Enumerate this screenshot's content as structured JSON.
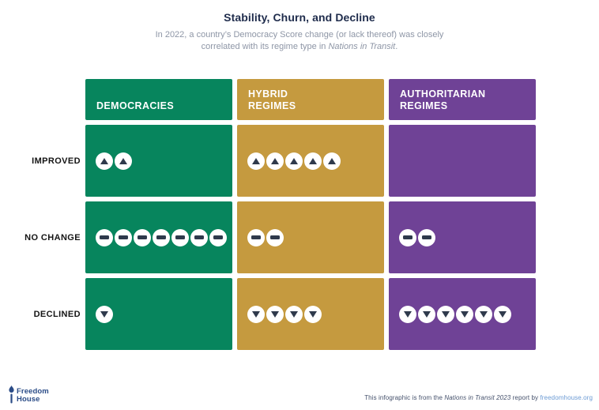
{
  "header": {
    "title": "Stability, Churn, and Decline",
    "subtitle_line1": "In 2022, a country’s Democracy Score change (or lack thereof) was closely",
    "subtitle_line2_prefix": "correlated with its regime type in ",
    "subtitle_line2_italic": "Nations in Transit",
    "subtitle_line2_suffix": "."
  },
  "grid": {
    "columns": [
      {
        "id": "democracies",
        "label": "DEMOCRACIES"
      },
      {
        "id": "hybrid",
        "label": "HYBRID\nREGIMES"
      },
      {
        "id": "authoritarian",
        "label": "AUTHORITARIAN\nREGIMES"
      }
    ],
    "rows": [
      {
        "label": "IMPROVED",
        "icon": "up-arrow",
        "counts": [
          2,
          5,
          0
        ]
      },
      {
        "label": "NO CHANGE",
        "icon": "minus",
        "counts": [
          7,
          2,
          2
        ]
      },
      {
        "label": "DECLINED",
        "icon": "down-arrow",
        "counts": [
          1,
          4,
          6
        ]
      }
    ]
  },
  "chart_data": {
    "type": "table",
    "title": "Stability, Churn, and Decline",
    "subtitle": "In 2022, a country’s Democracy Score change (or lack thereof) was closely correlated with its regime type in Nations in Transit.",
    "columns": [
      "Democracies",
      "Hybrid Regimes",
      "Authoritarian Regimes"
    ],
    "rows": [
      "Improved",
      "No Change",
      "Declined"
    ],
    "values": [
      [
        2,
        5,
        0
      ],
      [
        7,
        2,
        2
      ],
      [
        1,
        4,
        6
      ]
    ],
    "unit": "countries",
    "legend_position": "none",
    "notes": "Pictogram matrix: each circle icon = one country; up arrow = improved, minus = no change, down arrow = declined."
  },
  "footer": {
    "logo_line1": "Freedom",
    "logo_line2": "House",
    "attribution_prefix": "This infographic is from the ",
    "attribution_italic": "Nations in Transit 2023",
    "attribution_mid": " report by ",
    "attribution_link": "freedomhouse.org"
  },
  "colors": {
    "democracies": "#07855D",
    "hybrid": "#C59A3F",
    "authoritarian": "#6F4296",
    "icon": "#2F3A4C",
    "title": "#1F2C4C",
    "subtitle": "#8E96A6",
    "label": "#141414",
    "footer_text": "#44506B",
    "link": "#6C9BD4",
    "logo": "#2B4C87"
  }
}
